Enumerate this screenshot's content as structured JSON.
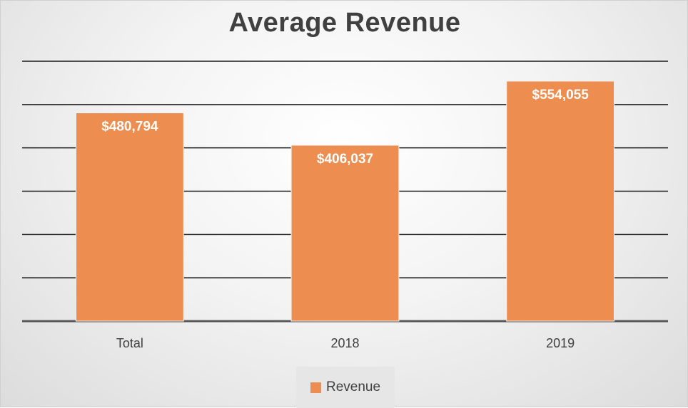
{
  "chart_data": {
    "type": "bar",
    "title": "Average Revenue",
    "categories": [
      "Total",
      "2018",
      "2019"
    ],
    "series": [
      {
        "name": "Revenue",
        "values": [
          480794,
          406037,
          554055
        ],
        "labels": [
          "$480,794",
          "$406,037",
          "$554,055"
        ],
        "color": "#ED8D4F"
      }
    ],
    "ylim": [
      0,
      600000
    ],
    "ytick_step": 100000,
    "grid": true,
    "legend": "bottom"
  }
}
